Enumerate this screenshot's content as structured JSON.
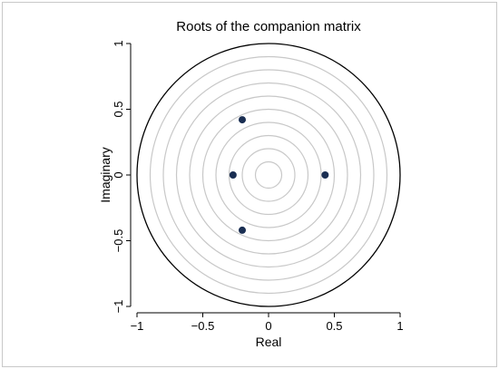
{
  "chart_data": {
    "type": "scatter",
    "title": "Roots of the companion matrix",
    "xlabel": "Real",
    "ylabel": "Imaginary",
    "xlim": [
      -1.05,
      1.05
    ],
    "ylim": [
      -1.05,
      1.05
    ],
    "x_ticks": [
      -1,
      -0.5,
      0,
      0.5,
      1
    ],
    "y_ticks": [
      -1,
      -0.5,
      0,
      0.5,
      1
    ],
    "x_tick_labels": [
      "−1",
      "−0.5",
      "0",
      "0.5",
      "1"
    ],
    "y_tick_labels": [
      "−1",
      "−0.5",
      "0",
      "0.5",
      "1"
    ],
    "grid": false,
    "unit_circle_radius": 1,
    "reference_circle_radii": [
      0.1,
      0.2,
      0.3,
      0.4,
      0.5,
      0.6,
      0.7,
      0.8,
      0.9
    ],
    "points": [
      {
        "x": -0.2,
        "y": 0.42
      },
      {
        "x": -0.27,
        "y": 0.0
      },
      {
        "x": 0.43,
        "y": 0.0
      },
      {
        "x": -0.2,
        "y": -0.42
      }
    ],
    "colors": {
      "points": "#1a2e52",
      "unit_circle": "#000000",
      "reference_circles": "#c8c8c8",
      "axes": "#000000"
    }
  }
}
